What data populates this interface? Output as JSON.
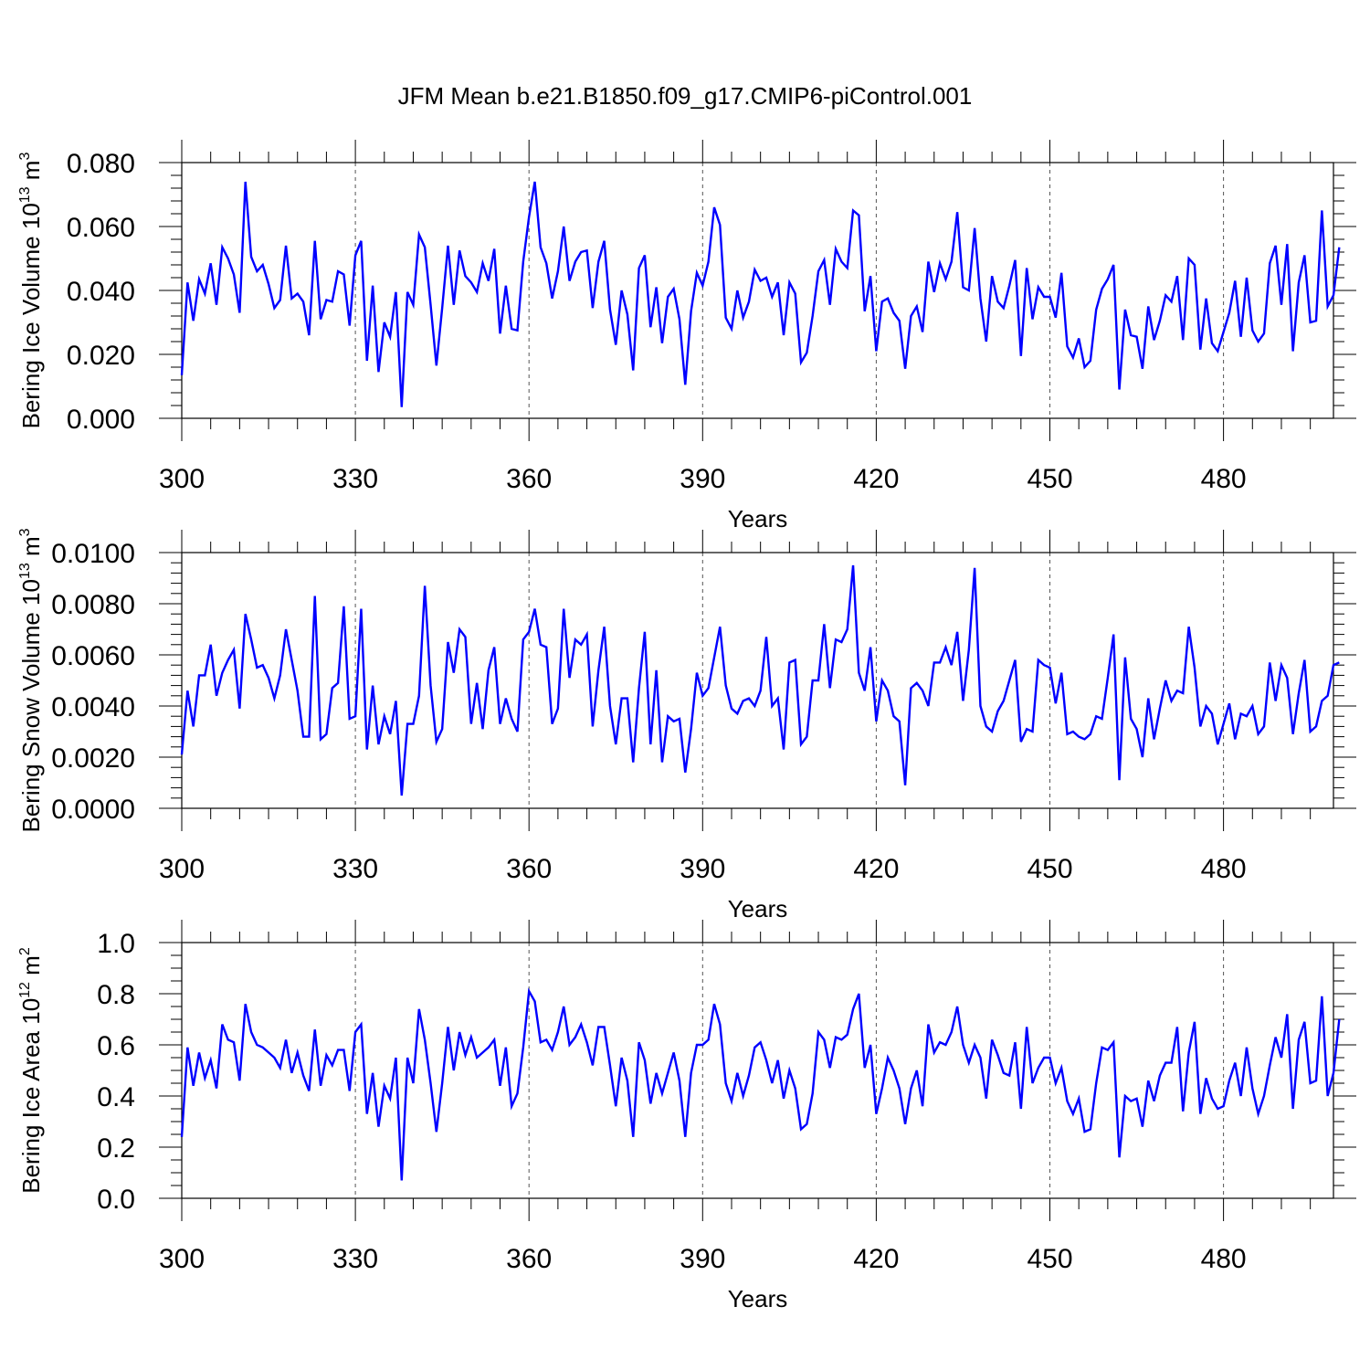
{
  "title": "JFM Mean b.e21.B1850.f09_g17.CMIP6-piControl.001",
  "colors": {
    "line": "#0000ff",
    "axis": "#000000",
    "grid": "#555555"
  },
  "chart_data": [
    {
      "type": "line",
      "name": "bering-ice-volume",
      "ylabel": {
        "text": "Bering Ice Volume 10",
        "exp": "13",
        "unit": " m",
        "unit_exp": "3"
      },
      "xlabel": "Years",
      "xlim": [
        300,
        499
      ],
      "ylim": [
        0,
        0.08
      ],
      "xticks": [
        300,
        330,
        360,
        390,
        420,
        450,
        480
      ],
      "xtick_labels": [
        "300",
        "330",
        "360",
        "390",
        "420",
        "450",
        "480"
      ],
      "yticks": [
        0,
        0.02,
        0.04,
        0.06,
        0.08
      ],
      "ytick_labels": [
        "0.000",
        "0.020",
        "0.040",
        "0.060",
        "0.080"
      ],
      "ytick_minor": 0.004,
      "x_start": 300,
      "values": [
        0.0135,
        0.0425,
        0.0305,
        0.0435,
        0.039,
        0.0485,
        0.0355,
        0.0535,
        0.05,
        0.045,
        0.033,
        0.074,
        0.0505,
        0.046,
        0.048,
        0.042,
        0.0345,
        0.037,
        0.054,
        0.0375,
        0.039,
        0.0365,
        0.026,
        0.0555,
        0.031,
        0.037,
        0.0365,
        0.046,
        0.045,
        0.029,
        0.051,
        0.0555,
        0.018,
        0.0415,
        0.0145,
        0.03,
        0.0255,
        0.0395,
        0.0035,
        0.0395,
        0.0355,
        0.0575,
        0.0535,
        0.0355,
        0.0165,
        0.0345,
        0.054,
        0.0355,
        0.0525,
        0.0445,
        0.0425,
        0.0395,
        0.0485,
        0.043,
        0.053,
        0.0265,
        0.0415,
        0.028,
        0.0275,
        0.049,
        0.063,
        0.074,
        0.0535,
        0.0485,
        0.0375,
        0.046,
        0.06,
        0.043,
        0.049,
        0.052,
        0.0525,
        0.0345,
        0.049,
        0.0555,
        0.034,
        0.023,
        0.04,
        0.0325,
        0.015,
        0.047,
        0.051,
        0.0285,
        0.041,
        0.0235,
        0.038,
        0.0405,
        0.031,
        0.0105,
        0.0335,
        0.0455,
        0.0415,
        0.049,
        0.066,
        0.0605,
        0.0315,
        0.028,
        0.04,
        0.0315,
        0.0365,
        0.0465,
        0.043,
        0.044,
        0.038,
        0.0425,
        0.026,
        0.0425,
        0.039,
        0.0175,
        0.0205,
        0.032,
        0.046,
        0.0495,
        0.0355,
        0.053,
        0.049,
        0.047,
        0.065,
        0.0635,
        0.0335,
        0.0445,
        0.021,
        0.0365,
        0.0375,
        0.033,
        0.0305,
        0.0155,
        0.032,
        0.035,
        0.027,
        0.049,
        0.0395,
        0.0485,
        0.0435,
        0.049,
        0.0645,
        0.041,
        0.04,
        0.0595,
        0.0375,
        0.024,
        0.0445,
        0.0365,
        0.0345,
        0.0415,
        0.0495,
        0.0195,
        0.047,
        0.031,
        0.041,
        0.038,
        0.038,
        0.0315,
        0.0455,
        0.0225,
        0.019,
        0.025,
        0.016,
        0.018,
        0.034,
        0.0405,
        0.0435,
        0.048,
        0.009,
        0.034,
        0.026,
        0.0255,
        0.0155,
        0.035,
        0.0245,
        0.0305,
        0.0385,
        0.0365,
        0.0445,
        0.0245,
        0.05,
        0.048,
        0.0215,
        0.0375,
        0.0235,
        0.021,
        0.027,
        0.033,
        0.043,
        0.0255,
        0.044,
        0.0275,
        0.024,
        0.0265,
        0.0485,
        0.054,
        0.0355,
        0.0545,
        0.021,
        0.0425,
        0.051,
        0.03,
        0.0305,
        0.065,
        0.035,
        0.0385,
        0.0535
      ]
    },
    {
      "type": "line",
      "name": "bering-snow-volume",
      "ylabel": {
        "text": "Bering Snow Volume 10",
        "exp": "13",
        "unit": " m",
        "unit_exp": "3"
      },
      "xlabel": "Years",
      "xlim": [
        300,
        499
      ],
      "ylim": [
        0,
        0.01
      ],
      "xticks": [
        300,
        330,
        360,
        390,
        420,
        450,
        480
      ],
      "xtick_labels": [
        "300",
        "330",
        "360",
        "390",
        "420",
        "450",
        "480"
      ],
      "yticks": [
        0,
        0.002,
        0.004,
        0.006,
        0.008,
        0.01
      ],
      "ytick_labels": [
        "0.0000",
        "0.0020",
        "0.0040",
        "0.0060",
        "0.0080",
        "0.0100"
      ],
      "ytick_minor": 0.0004,
      "x_start": 300,
      "values": [
        0.0021,
        0.0046,
        0.0032,
        0.0052,
        0.0052,
        0.0064,
        0.0044,
        0.0053,
        0.0058,
        0.0062,
        0.0039,
        0.0076,
        0.0066,
        0.0055,
        0.0056,
        0.0051,
        0.0043,
        0.0052,
        0.007,
        0.0058,
        0.0046,
        0.0028,
        0.0028,
        0.0083,
        0.0027,
        0.0029,
        0.0047,
        0.0049,
        0.0079,
        0.0035,
        0.0036,
        0.0078,
        0.0023,
        0.0048,
        0.0025,
        0.0036,
        0.0029,
        0.0042,
        0.0005,
        0.0033,
        0.0033,
        0.0044,
        0.0087,
        0.0048,
        0.0026,
        0.0031,
        0.0065,
        0.0053,
        0.007,
        0.0067,
        0.0033,
        0.0049,
        0.0031,
        0.0054,
        0.0063,
        0.0033,
        0.0043,
        0.0035,
        0.003,
        0.0066,
        0.0069,
        0.0078,
        0.0064,
        0.0063,
        0.0033,
        0.0039,
        0.0078,
        0.0051,
        0.0066,
        0.0064,
        0.0068,
        0.0032,
        0.0054,
        0.0071,
        0.004,
        0.0025,
        0.0043,
        0.0043,
        0.0018,
        0.0047,
        0.0069,
        0.0025,
        0.0054,
        0.0018,
        0.0036,
        0.0034,
        0.0035,
        0.0014,
        0.0031,
        0.0053,
        0.0044,
        0.0047,
        0.0059,
        0.0071,
        0.0048,
        0.0039,
        0.0037,
        0.0042,
        0.0043,
        0.004,
        0.0046,
        0.0067,
        0.004,
        0.0043,
        0.0023,
        0.0057,
        0.0058,
        0.0025,
        0.0028,
        0.005,
        0.005,
        0.0072,
        0.0047,
        0.0066,
        0.0065,
        0.007,
        0.0095,
        0.0053,
        0.0046,
        0.0063,
        0.0034,
        0.005,
        0.0046,
        0.0036,
        0.0034,
        0.0009,
        0.0047,
        0.0049,
        0.0046,
        0.004,
        0.0057,
        0.0057,
        0.0063,
        0.0056,
        0.0069,
        0.0042,
        0.0062,
        0.0094,
        0.004,
        0.0032,
        0.003,
        0.0038,
        0.0042,
        0.005,
        0.0058,
        0.0026,
        0.0031,
        0.003,
        0.0058,
        0.0056,
        0.0055,
        0.0041,
        0.0053,
        0.0029,
        0.003,
        0.0028,
        0.0027,
        0.0029,
        0.0036,
        0.0035,
        0.0051,
        0.0068,
        0.0011,
        0.0059,
        0.0035,
        0.0031,
        0.002,
        0.0043,
        0.0027,
        0.0039,
        0.005,
        0.0042,
        0.0046,
        0.0045,
        0.0071,
        0.0055,
        0.0032,
        0.004,
        0.0037,
        0.0025,
        0.0033,
        0.0041,
        0.0027,
        0.0037,
        0.0036,
        0.004,
        0.0029,
        0.0032,
        0.0057,
        0.0042,
        0.0056,
        0.0051,
        0.0029,
        0.0045,
        0.0058,
        0.003,
        0.0032,
        0.0042,
        0.0044,
        0.0056,
        0.0057
      ]
    },
    {
      "type": "line",
      "name": "bering-ice-area",
      "ylabel": {
        "text": "Bering Ice Area 10",
        "exp": "12",
        "unit": " m",
        "unit_exp": "2"
      },
      "xlabel": "Years",
      "xlim": [
        300,
        499
      ],
      "ylim": [
        0,
        1.0
      ],
      "xticks": [
        300,
        330,
        360,
        390,
        420,
        450,
        480
      ],
      "xtick_labels": [
        "300",
        "330",
        "360",
        "390",
        "420",
        "450",
        "480"
      ],
      "yticks": [
        0,
        0.2,
        0.4,
        0.6,
        0.8,
        1.0
      ],
      "ytick_labels": [
        "0.0",
        "0.2",
        "0.4",
        "0.6",
        "0.8",
        "1.0"
      ],
      "ytick_minor": 0.05,
      "x_start": 300,
      "values": [
        0.24,
        0.59,
        0.44,
        0.57,
        0.47,
        0.54,
        0.43,
        0.68,
        0.62,
        0.61,
        0.46,
        0.76,
        0.65,
        0.6,
        0.59,
        0.57,
        0.55,
        0.51,
        0.62,
        0.49,
        0.57,
        0.48,
        0.42,
        0.66,
        0.44,
        0.56,
        0.52,
        0.58,
        0.58,
        0.42,
        0.65,
        0.68,
        0.33,
        0.49,
        0.28,
        0.44,
        0.39,
        0.55,
        0.07,
        0.55,
        0.45,
        0.74,
        0.62,
        0.45,
        0.26,
        0.45,
        0.67,
        0.5,
        0.65,
        0.56,
        0.63,
        0.55,
        0.57,
        0.59,
        0.62,
        0.44,
        0.59,
        0.36,
        0.41,
        0.59,
        0.81,
        0.77,
        0.61,
        0.62,
        0.58,
        0.65,
        0.75,
        0.6,
        0.63,
        0.68,
        0.61,
        0.52,
        0.67,
        0.67,
        0.52,
        0.36,
        0.55,
        0.46,
        0.24,
        0.61,
        0.54,
        0.37,
        0.49,
        0.41,
        0.49,
        0.57,
        0.46,
        0.24,
        0.49,
        0.6,
        0.6,
        0.62,
        0.76,
        0.68,
        0.45,
        0.38,
        0.49,
        0.4,
        0.48,
        0.59,
        0.61,
        0.54,
        0.45,
        0.54,
        0.39,
        0.5,
        0.43,
        0.27,
        0.29,
        0.41,
        0.65,
        0.62,
        0.51,
        0.63,
        0.62,
        0.64,
        0.74,
        0.8,
        0.51,
        0.6,
        0.33,
        0.43,
        0.55,
        0.5,
        0.43,
        0.29,
        0.43,
        0.5,
        0.36,
        0.68,
        0.57,
        0.61,
        0.6,
        0.65,
        0.75,
        0.6,
        0.53,
        0.6,
        0.55,
        0.39,
        0.62,
        0.56,
        0.49,
        0.48,
        0.61,
        0.35,
        0.67,
        0.45,
        0.51,
        0.55,
        0.55,
        0.45,
        0.51,
        0.38,
        0.33,
        0.39,
        0.26,
        0.27,
        0.45,
        0.59,
        0.58,
        0.61,
        0.16,
        0.4,
        0.38,
        0.39,
        0.28,
        0.46,
        0.38,
        0.48,
        0.53,
        0.53,
        0.67,
        0.34,
        0.57,
        0.69,
        0.33,
        0.47,
        0.39,
        0.35,
        0.36,
        0.46,
        0.53,
        0.4,
        0.59,
        0.43,
        0.33,
        0.4,
        0.52,
        0.63,
        0.55,
        0.72,
        0.35,
        0.62,
        0.69,
        0.45,
        0.46,
        0.79,
        0.4,
        0.49,
        0.7
      ]
    }
  ]
}
